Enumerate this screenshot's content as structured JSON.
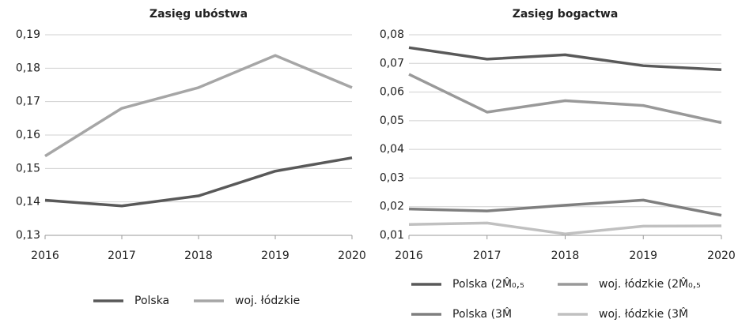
{
  "chart_data": [
    {
      "type": "line",
      "title": "Zasięg ubóstwa",
      "categories": [
        "2016",
        "2017",
        "2018",
        "2019",
        "2020"
      ],
      "ylim": [
        0.13,
        0.19
      ],
      "yticks": [
        {
          "value": 0.13,
          "label": "0,13"
        },
        {
          "value": 0.14,
          "label": "0,14"
        },
        {
          "value": 0.15,
          "label": "0,15"
        },
        {
          "value": 0.16,
          "label": "0,16"
        },
        {
          "value": 0.17,
          "label": "0,17"
        },
        {
          "value": 0.18,
          "label": "0,18"
        },
        {
          "value": 0.19,
          "label": "0,19"
        }
      ],
      "grid": true,
      "legend": "bottom",
      "series": [
        {
          "name": "Polska",
          "color": "#595959",
          "values": [
            0.1405,
            0.1388,
            0.1418,
            0.1492,
            0.1532
          ]
        },
        {
          "name": "woj. łódzkie",
          "color": "#a6a6a6",
          "values": [
            0.1537,
            0.168,
            0.1742,
            0.1838,
            0.1742
          ]
        }
      ]
    },
    {
      "type": "line",
      "title": "Zasięg bogactwa",
      "categories": [
        "2016",
        "2017",
        "2018",
        "2019",
        "2020"
      ],
      "ylim": [
        0.01,
        0.08
      ],
      "yticks": [
        {
          "value": 0.01,
          "label": "0,01"
        },
        {
          "value": 0.02,
          "label": "0,02"
        },
        {
          "value": 0.03,
          "label": "0,03"
        },
        {
          "value": 0.04,
          "label": "0,04"
        },
        {
          "value": 0.05,
          "label": "0,05"
        },
        {
          "value": 0.06,
          "label": "0,06"
        },
        {
          "value": 0.07,
          "label": "0,07"
        },
        {
          "value": 0.08,
          "label": "0,08"
        }
      ],
      "grid": true,
      "legend": "bottom",
      "series": [
        {
          "name": "Polska (2M̂₀,₅",
          "color": "#595959",
          "values": [
            0.0755,
            0.0715,
            0.073,
            0.0692,
            0.0678
          ]
        },
        {
          "name": "woj. łódzkie (2M̂₀,₅",
          "color": "#999999",
          "values": [
            0.0662,
            0.053,
            0.057,
            0.0553,
            0.0493
          ]
        },
        {
          "name": "Polska (3M̂",
          "color": "#7f7f7f",
          "values": [
            0.0192,
            0.0185,
            0.0205,
            0.0223,
            0.017
          ]
        },
        {
          "name": "woj. łódzkie (3M̂",
          "color": "#c0c0c0",
          "values": [
            0.0138,
            0.0143,
            0.0105,
            0.0132,
            0.0133
          ]
        }
      ]
    }
  ]
}
